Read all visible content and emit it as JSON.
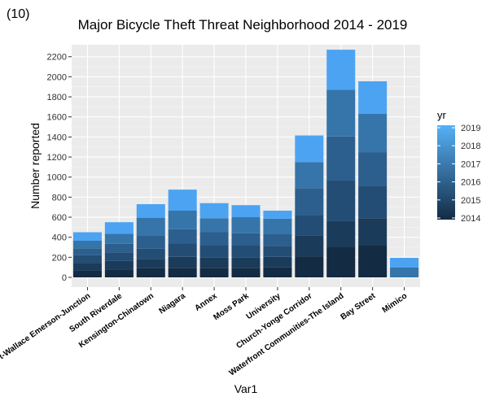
{
  "panel_tag": "(10)",
  "chart_data": {
    "type": "bar",
    "stacked": true,
    "title": "Major Bicycle Theft Threat Neighborhood 2014 - 2019",
    "xlabel": "Var1",
    "ylabel": "Number reported",
    "ylim": [
      0,
      2300
    ],
    "yticks": [
      0,
      200,
      400,
      600,
      800,
      1000,
      1200,
      1400,
      1600,
      1800,
      2000,
      2200
    ],
    "grid": true,
    "legend": {
      "title": "yr",
      "position": "right",
      "labels": [
        "2019",
        "2018",
        "2017",
        "2016",
        "2015",
        "2014"
      ]
    },
    "categories": [
      "Dovercourt-Wallace Emerson-Junction",
      "South Riverdale",
      "Kensington-Chinatown",
      "Niagara",
      "Annex",
      "Moss Park",
      "University",
      "Church-Yonge Corridor",
      "Waterfront Communities-The Island",
      "Bay Street",
      "Mimico"
    ],
    "series": [
      {
        "name": "2014",
        "color": "#132B43",
        "values": [
          70,
          80,
          90,
          95,
          95,
          95,
          100,
          210,
          300,
          320,
          0
        ]
      },
      {
        "name": "2015",
        "color": "#1B3B5B",
        "values": [
          75,
          85,
          95,
          110,
          105,
          105,
          105,
          210,
          260,
          270,
          0
        ]
      },
      {
        "name": "2016",
        "color": "#234D74",
        "values": [
          75,
          85,
          100,
          135,
          120,
          120,
          110,
          200,
          410,
          325,
          0
        ]
      },
      {
        "name": "2017",
        "color": "#2C5F8E",
        "values": [
          70,
          85,
          135,
          140,
          130,
          120,
          120,
          270,
          435,
          330,
          0
        ]
      },
      {
        "name": "2018",
        "color": "#3575AA",
        "values": [
          75,
          100,
          175,
          185,
          140,
          160,
          150,
          260,
          465,
          385,
          100
        ]
      },
      {
        "name": "2019",
        "color": "#4CA3F2",
        "values": [
          85,
          115,
          135,
          210,
          150,
          120,
          80,
          265,
          400,
          325,
          95
        ]
      }
    ]
  }
}
